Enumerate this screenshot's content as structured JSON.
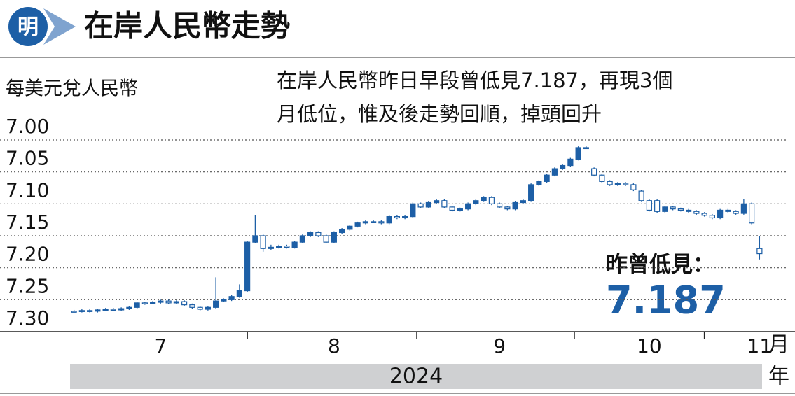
{
  "logo": "明",
  "chart_data": {
    "type": "candlestick",
    "title": "在岸人民幣走勢",
    "y_label": "每美元兌人民幣",
    "annotation": [
      "在岸人民幣昨日早段曾低見7.187，再現3個",
      "月低位，惟及後走勢回順，掉頭回升"
    ],
    "callout_label": "昨曾低見：",
    "callout_value": "7.187",
    "x_unit": "月",
    "year": "2024",
    "year_unit": "年",
    "color": "#1d5fa6",
    "grid": true,
    "ylim": [
      7.3,
      7.0
    ],
    "yticks": [
      {
        "value": 7.0,
        "label": "7.00"
      },
      7.05,
      {
        "value": 7.1,
        "label": "7.10"
      },
      7.15,
      {
        "value": 7.2,
        "label": "7.20"
      },
      7.25,
      {
        "value": 7.3,
        "label": "7.30"
      }
    ],
    "categories": [
      null,
      null,
      null,
      null,
      null,
      null,
      null,
      null,
      null,
      null,
      null,
      "7",
      null,
      null,
      null,
      null,
      null,
      null,
      null,
      null,
      null,
      null,
      null,
      null,
      null,
      null,
      null,
      null,
      null,
      null,
      null,
      null,
      null,
      "8",
      null,
      null,
      null,
      null,
      null,
      null,
      null,
      null,
      null,
      null,
      null,
      null,
      null,
      null,
      null,
      null,
      null,
      null,
      null,
      null,
      "9",
      null,
      null,
      null,
      null,
      null,
      null,
      null,
      null,
      null,
      null,
      null,
      null,
      null,
      null,
      null,
      null,
      null,
      null,
      "10",
      null,
      null,
      null,
      null,
      null,
      null,
      null,
      null,
      null,
      null,
      null,
      null,
      null,
      "11"
    ],
    "ohlc": [
      [
        7.268,
        7.27,
        7.266,
        7.268
      ],
      [
        7.268,
        7.27,
        7.265,
        7.267
      ],
      [
        7.267,
        7.27,
        7.265,
        7.268
      ],
      [
        7.268,
        7.27,
        7.264,
        7.266
      ],
      [
        7.266,
        7.268,
        7.263,
        7.265
      ],
      [
        7.265,
        7.268,
        7.263,
        7.266
      ],
      [
        7.266,
        7.268,
        7.262,
        7.264
      ],
      [
        7.264,
        7.266,
        7.26,
        7.262
      ],
      [
        7.262,
        7.264,
        7.253,
        7.255
      ],
      [
        7.255,
        7.258,
        7.253,
        7.255
      ],
      [
        7.255,
        7.257,
        7.252,
        7.254
      ],
      [
        7.254,
        7.256,
        7.25,
        7.252
      ],
      [
        7.252,
        7.257,
        7.25,
        7.255
      ],
      [
        7.255,
        7.257,
        7.251,
        7.253
      ],
      [
        7.253,
        7.26,
        7.251,
        7.258
      ],
      [
        7.258,
        7.264,
        7.256,
        7.262
      ],
      [
        7.262,
        7.267,
        7.26,
        7.265
      ],
      [
        7.265,
        7.267,
        7.26,
        7.262
      ],
      [
        7.262,
        7.264,
        7.215,
        7.252
      ],
      [
        7.252,
        7.254,
        7.248,
        7.25
      ],
      [
        7.25,
        7.252,
        7.243,
        7.245
      ],
      [
        7.245,
        7.247,
        7.226,
        7.236
      ],
      [
        7.236,
        7.238,
        7.158,
        7.16
      ],
      [
        7.16,
        7.162,
        7.118,
        7.15
      ],
      [
        7.15,
        7.175,
        7.148,
        7.17
      ],
      [
        7.17,
        7.172,
        7.164,
        7.168
      ],
      [
        7.168,
        7.17,
        7.164,
        7.166
      ],
      [
        7.166,
        7.17,
        7.164,
        7.168
      ],
      [
        7.168,
        7.17,
        7.158,
        7.16
      ],
      [
        7.16,
        7.162,
        7.148,
        7.15
      ],
      [
        7.15,
        7.152,
        7.143,
        7.145
      ],
      [
        7.145,
        7.152,
        7.143,
        7.15
      ],
      [
        7.15,
        7.162,
        7.148,
        7.16
      ],
      [
        7.16,
        7.162,
        7.143,
        7.145
      ],
      [
        7.145,
        7.147,
        7.138,
        7.14
      ],
      [
        7.14,
        7.142,
        7.133,
        7.135
      ],
      [
        7.135,
        7.137,
        7.128,
        7.13
      ],
      [
        7.13,
        7.132,
        7.126,
        7.128
      ],
      [
        7.128,
        7.13,
        7.126,
        7.128
      ],
      [
        7.128,
        7.132,
        7.126,
        7.13
      ],
      [
        7.13,
        7.132,
        7.118,
        7.12
      ],
      [
        7.12,
        7.124,
        7.118,
        7.122
      ],
      [
        7.122,
        7.124,
        7.118,
        7.12
      ],
      [
        7.12,
        7.122,
        7.098,
        7.1
      ],
      [
        7.1,
        7.107,
        7.098,
        7.105
      ],
      [
        7.105,
        7.107,
        7.096,
        7.098
      ],
      [
        7.098,
        7.1,
        7.093,
        7.095
      ],
      [
        7.095,
        7.107,
        7.093,
        7.105
      ],
      [
        7.105,
        7.112,
        7.103,
        7.11
      ],
      [
        7.11,
        7.112,
        7.106,
        7.108
      ],
      [
        7.108,
        7.11,
        7.098,
        7.1
      ],
      [
        7.1,
        7.102,
        7.093,
        7.095
      ],
      [
        7.095,
        7.097,
        7.088,
        7.09
      ],
      [
        7.09,
        7.102,
        7.088,
        7.1
      ],
      [
        7.1,
        7.107,
        7.098,
        7.105
      ],
      [
        7.105,
        7.11,
        7.103,
        7.108
      ],
      [
        7.108,
        7.11,
        7.096,
        7.098
      ],
      [
        7.098,
        7.1,
        7.093,
        7.095
      ],
      [
        7.095,
        7.097,
        7.068,
        7.07
      ],
      [
        7.07,
        7.072,
        7.063,
        7.065
      ],
      [
        7.065,
        7.067,
        7.053,
        7.055
      ],
      [
        7.055,
        7.057,
        7.043,
        7.045
      ],
      [
        7.045,
        7.047,
        7.038,
        7.04
      ],
      [
        7.04,
        7.042,
        7.028,
        7.03
      ],
      [
        7.03,
        7.032,
        7.01,
        7.012
      ],
      [
        7.012,
        7.014,
        7.01,
        7.012
      ],
      [
        7.045,
        7.057,
        7.043,
        7.055
      ],
      [
        7.055,
        7.067,
        7.053,
        7.065
      ],
      [
        7.065,
        7.072,
        7.063,
        7.07
      ],
      [
        7.07,
        7.072,
        7.066,
        7.068
      ],
      [
        7.068,
        7.072,
        7.066,
        7.07
      ],
      [
        7.07,
        7.08,
        7.068,
        7.078
      ],
      [
        7.08,
        7.097,
        7.078,
        7.095
      ],
      [
        7.095,
        7.112,
        7.093,
        7.11
      ],
      [
        7.095,
        7.114,
        7.093,
        7.112
      ],
      [
        7.112,
        7.114,
        7.103,
        7.105
      ],
      [
        7.105,
        7.11,
        7.103,
        7.108
      ],
      [
        7.108,
        7.112,
        7.106,
        7.11
      ],
      [
        7.11,
        7.114,
        7.108,
        7.112
      ],
      [
        7.112,
        7.117,
        7.11,
        7.115
      ],
      [
        7.115,
        7.12,
        7.113,
        7.118
      ],
      [
        7.118,
        7.124,
        7.116,
        7.122
      ],
      [
        7.122,
        7.124,
        7.108,
        7.11
      ],
      [
        7.11,
        7.114,
        7.108,
        7.112
      ],
      [
        7.112,
        7.117,
        7.11,
        7.115
      ],
      [
        7.115,
        7.117,
        7.092,
        7.1
      ],
      [
        7.1,
        7.132,
        7.098,
        7.13
      ],
      [
        7.17,
        7.187,
        7.15,
        7.178
      ]
    ]
  }
}
